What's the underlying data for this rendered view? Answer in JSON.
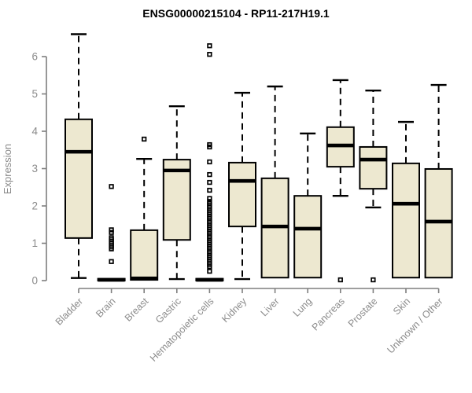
{
  "chart_data": {
    "type": "boxplot",
    "title": "ENSG00000215104 - RP11-217H19.1",
    "ylabel": "Expression",
    "xlabel": "",
    "ylim": [
      0,
      6
    ],
    "yticks": [
      0,
      1,
      2,
      3,
      4,
      5,
      6
    ],
    "grid": false,
    "legend_position": "none",
    "colors": {
      "box_fill": "#EDE8D0",
      "box_stroke": "#000000",
      "median": "#000000",
      "whisker": "#000000",
      "outlier": "#000000",
      "axis": "#7f7f7f",
      "tick_labels": "#8b8b8b",
      "title": "#000000",
      "background": "#ffffff"
    },
    "categories": [
      "Bladder",
      "Brain",
      "Breast",
      "Gastric",
      "Hematopoietic cells",
      "Kidney",
      "Liver",
      "Lung",
      "Pancreas",
      "Prostate",
      "Skin",
      "Unknown / Other"
    ],
    "series": [
      {
        "category": "Bladder",
        "min": 0.07,
        "q1": 1.14,
        "median": 3.45,
        "q3": 4.32,
        "max": 6.6,
        "outliers": []
      },
      {
        "category": "Brain",
        "min": 0.0,
        "q1": 0.0,
        "median": 0.02,
        "q3": 0.05,
        "max": 0.05,
        "outliers": [
          2.52,
          1.36,
          1.29,
          1.15,
          1.1,
          1.05,
          1.0,
          0.95,
          0.9,
          0.85,
          0.51
        ]
      },
      {
        "category": "Breast",
        "min": 0.02,
        "q1": 0.02,
        "median": 0.06,
        "q3": 1.35,
        "max": 3.26,
        "outliers": [
          3.79
        ]
      },
      {
        "category": "Gastric",
        "min": 0.04,
        "q1": 1.09,
        "median": 2.95,
        "q3": 3.24,
        "max": 4.67,
        "outliers": []
      },
      {
        "category": "Hematopoietic cells",
        "min": 0.0,
        "q1": 0.0,
        "median": 0.02,
        "q3": 0.05,
        "max": 0.05,
        "outliers": [
          6.29,
          6.06,
          3.64,
          3.58,
          3.18,
          2.84,
          2.63,
          2.42,
          2.2,
          2.12,
          2.07,
          2.02,
          1.97,
          1.92,
          1.87,
          1.82,
          1.77,
          1.72,
          1.67,
          1.62,
          1.57,
          1.52,
          1.47,
          1.42,
          1.37,
          1.32,
          1.27,
          1.22,
          1.17,
          1.12,
          1.07,
          1.02,
          0.97,
          0.92,
          0.87,
          0.82,
          0.77,
          0.72,
          0.67,
          0.62,
          0.57,
          0.52,
          0.47,
          0.42,
          0.37,
          0.25
        ]
      },
      {
        "category": "Kidney",
        "min": 0.04,
        "q1": 1.45,
        "median": 2.67,
        "q3": 3.16,
        "max": 5.03,
        "outliers": []
      },
      {
        "category": "Liver",
        "min": 0.08,
        "q1": 0.08,
        "median": 1.45,
        "q3": 2.74,
        "max": 5.2,
        "outliers": []
      },
      {
        "category": "Lung",
        "min": 0.08,
        "q1": 0.08,
        "median": 1.39,
        "q3": 2.27,
        "max": 3.94,
        "outliers": []
      },
      {
        "category": "Pancreas",
        "min": 2.27,
        "q1": 3.05,
        "median": 3.62,
        "q3": 4.11,
        "max": 5.37,
        "outliers": [
          0.02
        ]
      },
      {
        "category": "Prostate",
        "min": 1.96,
        "q1": 2.46,
        "median": 3.24,
        "q3": 3.58,
        "max": 5.09,
        "outliers": [
          0.02
        ]
      },
      {
        "category": "Skin",
        "min": 0.08,
        "q1": 0.08,
        "median": 2.06,
        "q3": 3.14,
        "max": 4.25,
        "outliers": []
      },
      {
        "category": "Unknown / Other",
        "min": 0.08,
        "q1": 0.08,
        "median": 1.58,
        "q3": 2.99,
        "max": 5.24,
        "outliers": []
      }
    ]
  }
}
